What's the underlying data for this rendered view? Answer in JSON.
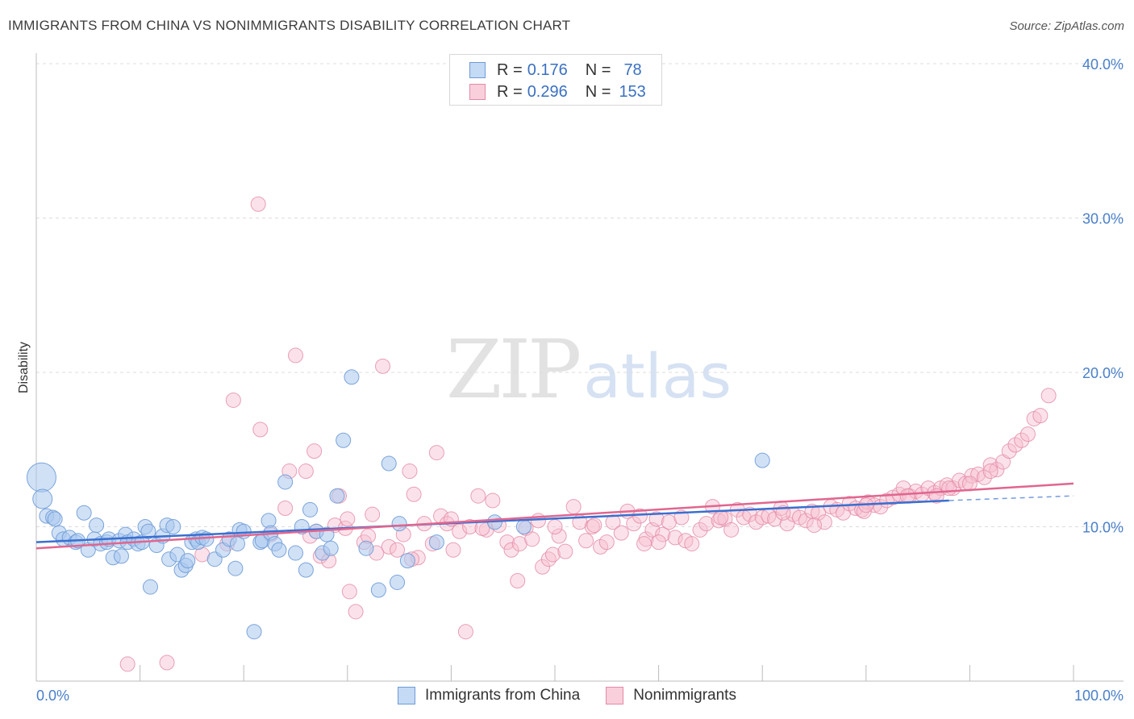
{
  "title": "IMMIGRANTS FROM CHINA VS NONIMMIGRANTS DISABILITY CORRELATION CHART",
  "source": "Source: ZipAtlas.com",
  "watermark": {
    "zip": "ZIP",
    "atlas": "atlas"
  },
  "legend": {
    "rows": [
      {
        "r_label": "R =",
        "r_value": "0.176",
        "n_label": "N =",
        "n_value": "78",
        "color": "#a9c8ef",
        "border": "#6f9bd6"
      },
      {
        "r_label": "R =",
        "r_value": "0.296",
        "n_label": "N =",
        "n_value": "153",
        "color": "#f7bfd0",
        "border": "#e38aa5"
      }
    ]
  },
  "bottom_legend": [
    "Immigrants from China",
    "Nonimmigrants"
  ],
  "chart_data": {
    "type": "scatter",
    "title": "IMMIGRANTS FROM CHINA VS NONIMMIGRANTS DISABILITY CORRELATION CHART",
    "xlabel": "",
    "ylabel": "Disability",
    "xlim": [
      0,
      100
    ],
    "ylim": [
      0,
      40
    ],
    "x_tick_labels": [
      "0.0%",
      "100.0%"
    ],
    "y_ticks": [
      10,
      20,
      30,
      40
    ],
    "y_tick_labels": [
      "10.0%",
      "20.0%",
      "30.0%",
      "40.0%"
    ],
    "grid": true,
    "legend_position": "top-center",
    "series": [
      {
        "name": "Immigrants from China",
        "color": "#a9c8ef",
        "stroke": "#6f9bd6",
        "line_color": "#3a6fd0",
        "trend": {
          "x": [
            0,
            88
          ],
          "y": [
            9.0,
            11.7
          ],
          "dashed_to": [
            100,
            12.0
          ]
        },
        "points": [
          [
            0.5,
            13.2,
            2.4
          ],
          [
            0.6,
            11.8,
            1.6
          ],
          [
            1.0,
            10.7,
            1.2
          ],
          [
            1.6,
            10.6,
            1.2
          ],
          [
            1.8,
            10.5,
            1.2
          ],
          [
            2.2,
            9.6,
            1.2
          ],
          [
            2.6,
            9.2,
            1.2
          ],
          [
            3.2,
            9.3,
            1.2
          ],
          [
            3.8,
            9.0,
            1.2
          ],
          [
            4.0,
            9.1,
            1.2
          ],
          [
            4.6,
            10.9,
            1.2
          ],
          [
            5.0,
            8.5,
            1.2
          ],
          [
            5.6,
            9.2,
            1.2
          ],
          [
            5.8,
            10.1,
            1.2
          ],
          [
            6.2,
            8.9,
            1.2
          ],
          [
            6.8,
            9.0,
            1.2
          ],
          [
            7.0,
            9.2,
            1.2
          ],
          [
            7.4,
            8.0,
            1.2
          ],
          [
            8.0,
            9.1,
            1.2
          ],
          [
            8.2,
            8.1,
            1.2
          ],
          [
            8.6,
            9.5,
            1.2
          ],
          [
            8.8,
            9.0,
            1.2
          ],
          [
            9.4,
            9.2,
            1.2
          ],
          [
            9.8,
            8.9,
            1.2
          ],
          [
            10.2,
            9.0,
            1.2
          ],
          [
            10.5,
            10.0,
            1.2
          ],
          [
            10.8,
            9.7,
            1.2
          ],
          [
            11.0,
            6.1,
            1.2
          ],
          [
            11.6,
            8.8,
            1.2
          ],
          [
            12.2,
            9.4,
            1.2
          ],
          [
            12.6,
            10.1,
            1.2
          ],
          [
            12.8,
            7.9,
            1.2
          ],
          [
            13.2,
            10.0,
            1.2
          ],
          [
            13.6,
            8.2,
            1.2
          ],
          [
            14.0,
            7.2,
            1.2
          ],
          [
            14.4,
            7.5,
            1.2
          ],
          [
            14.6,
            7.8,
            1.2
          ],
          [
            15.0,
            9.0,
            1.2
          ],
          [
            15.4,
            9.2,
            1.2
          ],
          [
            15.6,
            9.0,
            1.2
          ],
          [
            16.0,
            9.3,
            1.2
          ],
          [
            16.4,
            9.2,
            1.2
          ],
          [
            17.2,
            7.9,
            1.2
          ],
          [
            18.0,
            8.5,
            1.2
          ],
          [
            18.6,
            9.2,
            1.2
          ],
          [
            19.2,
            7.3,
            1.2
          ],
          [
            19.4,
            8.9,
            1.2
          ],
          [
            19.6,
            9.8,
            1.2
          ],
          [
            20.0,
            9.7,
            1.2
          ],
          [
            21.0,
            3.2,
            1.2
          ],
          [
            21.6,
            9.0,
            1.2
          ],
          [
            21.8,
            9.1,
            1.2
          ],
          [
            22.4,
            10.4,
            1.2
          ],
          [
            22.6,
            9.6,
            1.2
          ],
          [
            23.0,
            8.9,
            1.2
          ],
          [
            23.4,
            8.5,
            1.2
          ],
          [
            24.0,
            12.9,
            1.2
          ],
          [
            25.0,
            8.3,
            1.2
          ],
          [
            25.6,
            10.0,
            1.2
          ],
          [
            26.0,
            7.2,
            1.2
          ],
          [
            26.4,
            11.1,
            1.2
          ],
          [
            27.0,
            9.7,
            1.2
          ],
          [
            27.6,
            8.3,
            1.2
          ],
          [
            28.0,
            9.5,
            1.2
          ],
          [
            28.4,
            8.6,
            1.2
          ],
          [
            29.0,
            12.0,
            1.2
          ],
          [
            29.6,
            15.6,
            1.2
          ],
          [
            30.4,
            19.7,
            1.2
          ],
          [
            31.8,
            8.6,
            1.2
          ],
          [
            34.0,
            14.1,
            1.2
          ],
          [
            34.8,
            6.4,
            1.2
          ],
          [
            35.0,
            10.2,
            1.2
          ],
          [
            35.8,
            7.8,
            1.2
          ],
          [
            38.6,
            9.0,
            1.2
          ],
          [
            44.2,
            10.3,
            1.2
          ],
          [
            47.0,
            10.0,
            1.2
          ],
          [
            70.0,
            14.3,
            1.2
          ],
          [
            33.0,
            5.9,
            1.2
          ]
        ]
      },
      {
        "name": "Nonimmigrants",
        "color": "#f7bfd0",
        "stroke": "#e38aa5",
        "line_color": "#e0668f",
        "trend": {
          "x": [
            0,
            100
          ],
          "y": [
            8.6,
            12.8
          ]
        },
        "points": [
          [
            8.8,
            1.1
          ],
          [
            12.6,
            1.2
          ],
          [
            16.0,
            8.2
          ],
          [
            18.4,
            8.9
          ],
          [
            19.0,
            18.2
          ],
          [
            21.4,
            30.9
          ],
          [
            21.6,
            16.3
          ],
          [
            22.6,
            9.5
          ],
          [
            24.0,
            11.2
          ],
          [
            24.4,
            13.6
          ],
          [
            25.0,
            21.1
          ],
          [
            26.0,
            13.6
          ],
          [
            26.4,
            9.4
          ],
          [
            26.8,
            14.9
          ],
          [
            27.4,
            8.1
          ],
          [
            28.2,
            7.8
          ],
          [
            28.8,
            10.1
          ],
          [
            29.2,
            12.0
          ],
          [
            29.8,
            9.9
          ],
          [
            30.2,
            5.8
          ],
          [
            30.8,
            4.5
          ],
          [
            31.6,
            9.0
          ],
          [
            32.0,
            9.4
          ],
          [
            32.8,
            8.3
          ],
          [
            33.4,
            20.4
          ],
          [
            34.0,
            8.7
          ],
          [
            34.8,
            8.5
          ],
          [
            35.4,
            9.5
          ],
          [
            36.0,
            13.6
          ],
          [
            36.4,
            12.1
          ],
          [
            36.8,
            8.0
          ],
          [
            37.4,
            10.2
          ],
          [
            38.2,
            8.9
          ],
          [
            38.6,
            14.8
          ],
          [
            39.0,
            10.7
          ],
          [
            39.6,
            10.2
          ],
          [
            40.2,
            8.5
          ],
          [
            40.8,
            9.7
          ],
          [
            41.4,
            3.2
          ],
          [
            41.8,
            10.0
          ],
          [
            42.6,
            12.0
          ],
          [
            43.4,
            9.8
          ],
          [
            44.0,
            11.7
          ],
          [
            44.6,
            10.1
          ],
          [
            45.4,
            9.0
          ],
          [
            45.8,
            8.5
          ],
          [
            46.4,
            6.5
          ],
          [
            46.6,
            8.9
          ],
          [
            47.2,
            9.9
          ],
          [
            47.8,
            9.2
          ],
          [
            48.4,
            10.4
          ],
          [
            48.8,
            7.4
          ],
          [
            49.4,
            7.9
          ],
          [
            49.8,
            8.2
          ],
          [
            50.4,
            9.4
          ],
          [
            51.0,
            8.4
          ],
          [
            51.8,
            11.3
          ],
          [
            52.4,
            10.3
          ],
          [
            53.0,
            9.1
          ],
          [
            53.6,
            10.0
          ],
          [
            54.4,
            8.7
          ],
          [
            55.0,
            9.0
          ],
          [
            55.6,
            10.3
          ],
          [
            56.4,
            9.6
          ],
          [
            57.0,
            11.0
          ],
          [
            57.6,
            10.2
          ],
          [
            58.2,
            10.7
          ],
          [
            58.8,
            9.2
          ],
          [
            59.4,
            9.8
          ],
          [
            59.8,
            10.5
          ],
          [
            60.4,
            9.5
          ],
          [
            61.0,
            10.3
          ],
          [
            61.6,
            9.3
          ],
          [
            62.2,
            10.6
          ],
          [
            62.6,
            9.1
          ],
          [
            63.2,
            8.9
          ],
          [
            64.0,
            9.8
          ],
          [
            64.6,
            10.2
          ],
          [
            65.2,
            11.3
          ],
          [
            65.8,
            10.4
          ],
          [
            66.4,
            10.5
          ],
          [
            67.0,
            9.8
          ],
          [
            67.6,
            11.1
          ],
          [
            68.2,
            10.6
          ],
          [
            68.8,
            10.8
          ],
          [
            69.4,
            10.3
          ],
          [
            70.0,
            10.6
          ],
          [
            70.6,
            10.7
          ],
          [
            71.2,
            10.5
          ],
          [
            71.8,
            11.2
          ],
          [
            72.4,
            10.2
          ],
          [
            73.0,
            10.8
          ],
          [
            73.6,
            10.6
          ],
          [
            74.2,
            10.4
          ],
          [
            74.8,
            11.0
          ],
          [
            75.4,
            10.9
          ],
          [
            76.0,
            10.3
          ],
          [
            76.6,
            11.3
          ],
          [
            77.2,
            11.1
          ],
          [
            77.8,
            10.9
          ],
          [
            78.4,
            11.5
          ],
          [
            79.0,
            11.2
          ],
          [
            79.6,
            11.1
          ],
          [
            80.2,
            11.6
          ],
          [
            80.8,
            11.4
          ],
          [
            81.4,
            11.3
          ],
          [
            82.0,
            11.7
          ],
          [
            82.6,
            11.9
          ],
          [
            83.2,
            12.1
          ],
          [
            83.6,
            12.5
          ],
          [
            84.2,
            12.0
          ],
          [
            84.8,
            12.3
          ],
          [
            85.4,
            12.1
          ],
          [
            86.0,
            12.5
          ],
          [
            86.6,
            12.2
          ],
          [
            87.2,
            12.5
          ],
          [
            87.8,
            12.7
          ],
          [
            88.4,
            12.5
          ],
          [
            89.0,
            13.0
          ],
          [
            89.6,
            12.8
          ],
          [
            90.2,
            13.3
          ],
          [
            90.8,
            13.4
          ],
          [
            91.4,
            13.2
          ],
          [
            92.0,
            14.0
          ],
          [
            92.6,
            13.7
          ],
          [
            93.2,
            14.2
          ],
          [
            93.8,
            14.9
          ],
          [
            94.4,
            15.3
          ],
          [
            95.0,
            15.6
          ],
          [
            95.6,
            16.0
          ],
          [
            96.2,
            17.0
          ],
          [
            96.8,
            17.2
          ],
          [
            97.6,
            18.5
          ],
          [
            32.4,
            10.8
          ],
          [
            58.6,
            8.9
          ],
          [
            75.0,
            10.1
          ],
          [
            79.8,
            11.0
          ],
          [
            86.8,
            12.0
          ],
          [
            90.0,
            12.8
          ],
          [
            60.0,
            9.0
          ],
          [
            40.0,
            10.5
          ],
          [
            43.0,
            9.9
          ],
          [
            50.0,
            10.0
          ],
          [
            66.0,
            10.6
          ],
          [
            72.0,
            10.9
          ],
          [
            80.0,
            11.4
          ],
          [
            84.0,
            12.0
          ],
          [
            88.0,
            12.5
          ],
          [
            92.0,
            13.6
          ],
          [
            30.0,
            10.5
          ],
          [
            27.0,
            9.7
          ],
          [
            36.2,
            7.9
          ],
          [
            53.8,
            10.1
          ]
        ]
      }
    ]
  }
}
